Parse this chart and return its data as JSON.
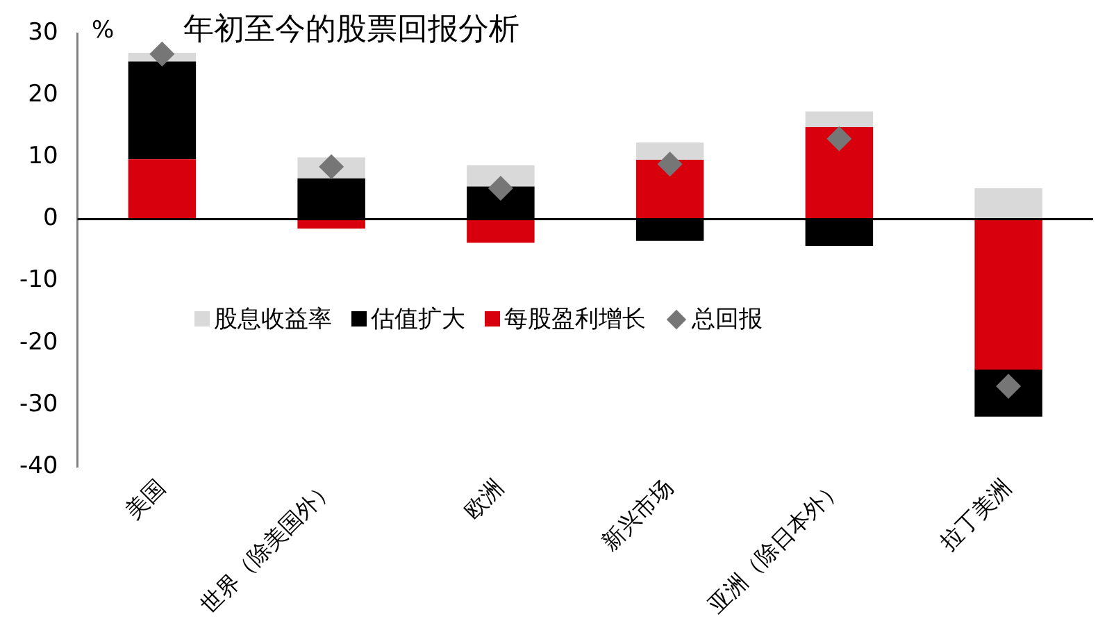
{
  "chart_data": {
    "type": "bar",
    "title": "年初至今的股票回报分析",
    "ylabel": "%",
    "categories": [
      "美国",
      "世界（除美国外）",
      "欧洲",
      "新兴市场",
      "亚洲（除日本外）",
      "拉丁美洲"
    ],
    "stacked": true,
    "ylim": [
      -40,
      30
    ],
    "yticks": [
      -40,
      -30,
      -20,
      -10,
      0,
      10,
      20,
      30
    ],
    "grid": false,
    "legend": "left",
    "ref_lines": [
      {
        "axis": "y",
        "value": 0,
        "color": "#000000",
        "line_style": "solid"
      }
    ],
    "series": [
      {
        "name": "每股盈利增长",
        "color": "#d9000d",
        "values": [
          9.7,
          -1.5,
          -3.8,
          9.6,
          14.9,
          -24.3
        ]
      },
      {
        "name": "估值扩大",
        "color": "#000000",
        "values": [
          15.8,
          6.6,
          5.3,
          -3.5,
          -4.3,
          -7.6
        ]
      },
      {
        "name": "股息收益率",
        "color": "#d9d9d9",
        "values": [
          1.4,
          3.4,
          3.4,
          2.8,
          2.5,
          5.0
        ]
      },
      {
        "name": "总回报",
        "type": "scatter",
        "marker": "diamond",
        "color": "#767676",
        "x": [
          "美国",
          "世界（除美国外）",
          "欧洲",
          "新兴市场",
          "亚洲（除日本外）",
          "拉丁美洲"
        ],
        "values": [
          26.7,
          8.5,
          5.0,
          8.9,
          13.0,
          -27.0
        ]
      }
    ]
  }
}
